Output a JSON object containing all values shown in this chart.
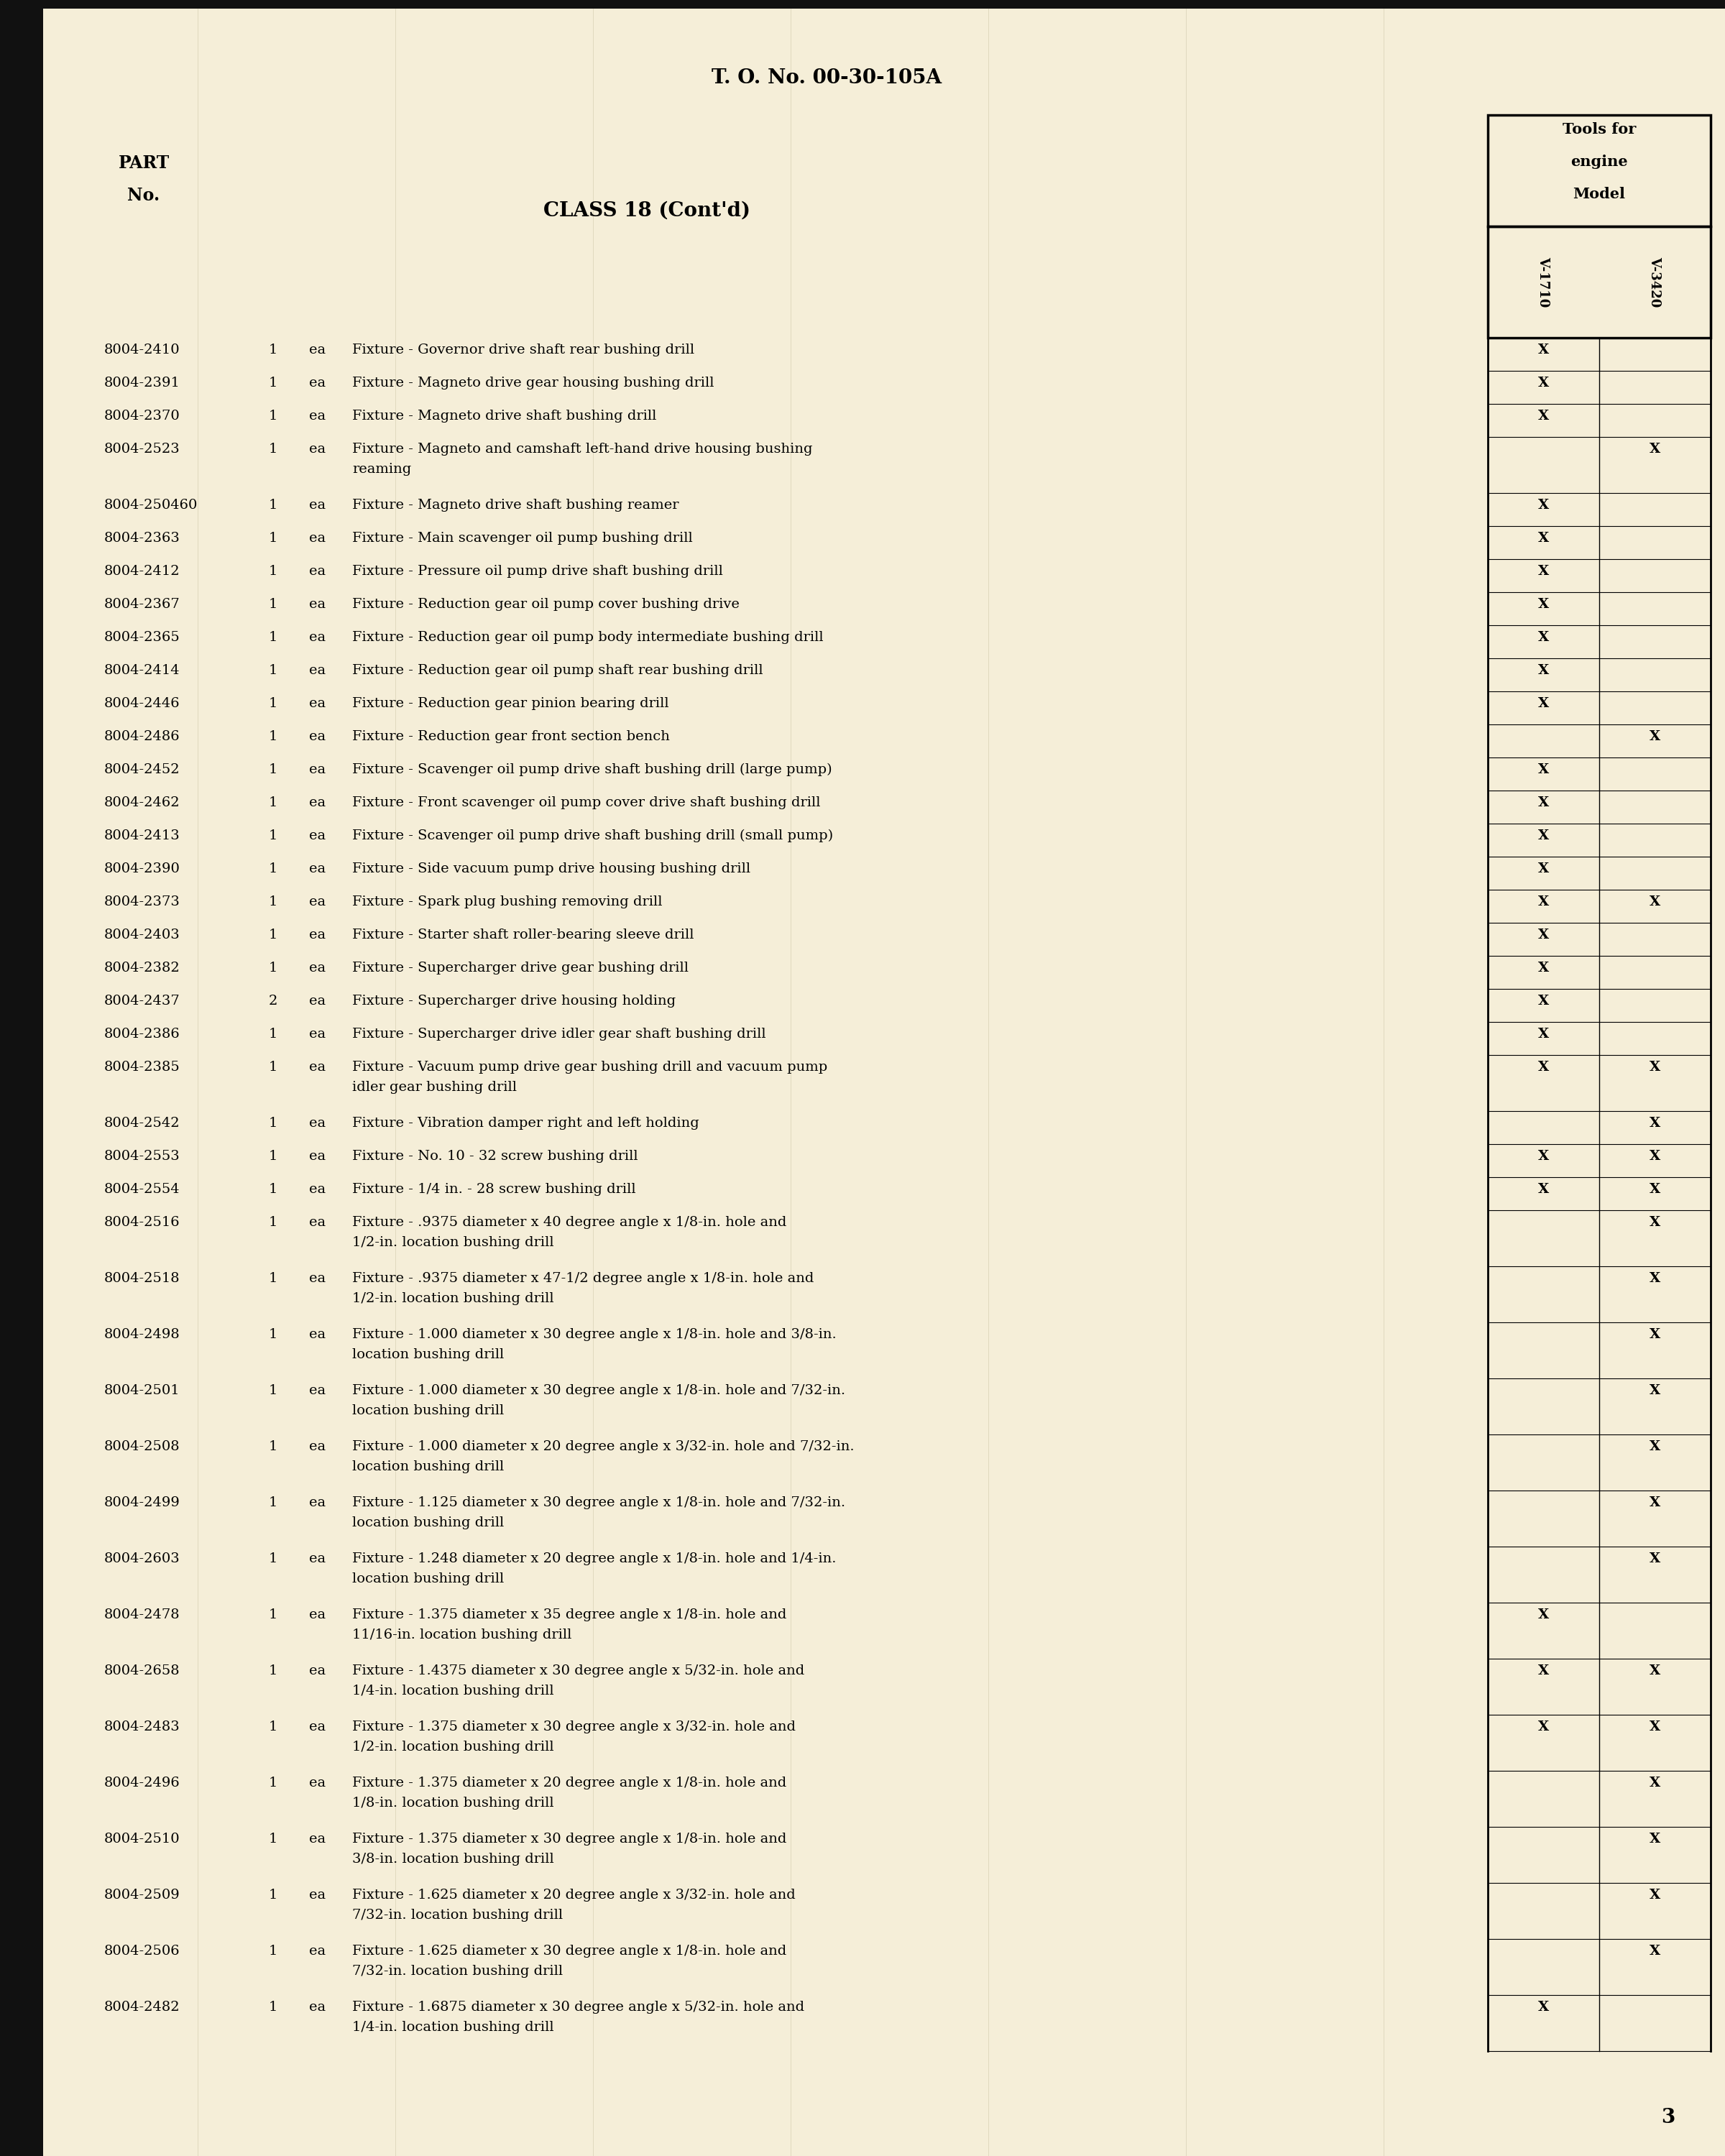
{
  "bg_color": "#f0ead8",
  "page_color": "#f5eed8",
  "header_text": "T. O. No. 00-30-105A",
  "class_text": "CLASS 18 (Cont'd)",
  "part_no_label_line1": "PART",
  "part_no_label_line2": "No.",
  "tools_header_line1": "Tools for",
  "tools_header_line2": "engine",
  "tools_header_line3": "Model",
  "col_v1710": "V-1710",
  "col_v3420": "V-3420",
  "page_number": "3",
  "rows": [
    {
      "part": "8004-2410",
      "qty": "1",
      "unit": "ea",
      "desc": "Fixture - Governor drive shaft rear bushing drill",
      "v1710": true,
      "v3420": false,
      "lines": 1
    },
    {
      "part": "8004-2391",
      "qty": "1",
      "unit": "ea",
      "desc": "Fixture - Magneto drive gear housing bushing drill",
      "v1710": true,
      "v3420": false,
      "lines": 1
    },
    {
      "part": "8004-2370",
      "qty": "1",
      "unit": "ea",
      "desc": "Fixture - Magneto drive shaft bushing drill",
      "v1710": true,
      "v3420": false,
      "lines": 1
    },
    {
      "part": "8004-2523",
      "qty": "1",
      "unit": "ea",
      "desc": "Fixture - Magneto and camshaft left-hand drive housing bushing\nreaming",
      "v1710": false,
      "v3420": true,
      "lines": 2
    },
    {
      "part": "8004-250460",
      "qty": "1",
      "unit": "ea",
      "desc": "Fixture - Magneto drive shaft bushing reamer",
      "v1710": true,
      "v3420": false,
      "lines": 1
    },
    {
      "part": "8004-2363",
      "qty": "1",
      "unit": "ea",
      "desc": "Fixture - Main scavenger oil pump bushing drill",
      "v1710": true,
      "v3420": false,
      "lines": 1
    },
    {
      "part": "8004-2412",
      "qty": "1",
      "unit": "ea",
      "desc": "Fixture - Pressure oil pump drive shaft bushing drill",
      "v1710": true,
      "v3420": false,
      "lines": 1
    },
    {
      "part": "8004-2367",
      "qty": "1",
      "unit": "ea",
      "desc": "Fixture - Reduction gear oil pump cover bushing drive",
      "v1710": true,
      "v3420": false,
      "lines": 1
    },
    {
      "part": "8004-2365",
      "qty": "1",
      "unit": "ea",
      "desc": "Fixture - Reduction gear oil pump body intermediate bushing drill",
      "v1710": true,
      "v3420": false,
      "lines": 1
    },
    {
      "part": "8004-2414",
      "qty": "1",
      "unit": "ea",
      "desc": "Fixture - Reduction gear oil pump shaft rear bushing drill",
      "v1710": true,
      "v3420": false,
      "lines": 1
    },
    {
      "part": "8004-2446",
      "qty": "1",
      "unit": "ea",
      "desc": "Fixture - Reduction gear pinion bearing drill",
      "v1710": true,
      "v3420": false,
      "lines": 1
    },
    {
      "part": "8004-2486",
      "qty": "1",
      "unit": "ea",
      "desc": "Fixture - Reduction gear front section bench",
      "v1710": false,
      "v3420": true,
      "lines": 1
    },
    {
      "part": "8004-2452",
      "qty": "1",
      "unit": "ea",
      "desc": "Fixture - Scavenger oil pump drive shaft bushing drill (large pump)",
      "v1710": true,
      "v3420": false,
      "lines": 1
    },
    {
      "part": "8004-2462",
      "qty": "1",
      "unit": "ea",
      "desc": "Fixture - Front scavenger oil pump cover drive shaft bushing drill",
      "v1710": true,
      "v3420": false,
      "lines": 1
    },
    {
      "part": "8004-2413",
      "qty": "1",
      "unit": "ea",
      "desc": "Fixture - Scavenger oil pump drive shaft bushing drill (small pump)",
      "v1710": true,
      "v3420": false,
      "lines": 1
    },
    {
      "part": "8004-2390",
      "qty": "1",
      "unit": "ea",
      "desc": "Fixture - Side vacuum pump drive housing bushing drill",
      "v1710": true,
      "v3420": false,
      "lines": 1
    },
    {
      "part": "8004-2373",
      "qty": "1",
      "unit": "ea",
      "desc": "Fixture - Spark plug bushing removing drill",
      "v1710": true,
      "v3420": true,
      "lines": 1
    },
    {
      "part": "8004-2403",
      "qty": "1",
      "unit": "ea",
      "desc": "Fixture - Starter shaft roller-bearing sleeve drill",
      "v1710": true,
      "v3420": false,
      "lines": 1
    },
    {
      "part": "8004-2382",
      "qty": "1",
      "unit": "ea",
      "desc": "Fixture - Supercharger drive gear bushing drill",
      "v1710": true,
      "v3420": false,
      "lines": 1
    },
    {
      "part": "8004-2437",
      "qty": "2",
      "unit": "ea",
      "desc": "Fixture - Supercharger drive housing holding",
      "v1710": true,
      "v3420": false,
      "lines": 1
    },
    {
      "part": "8004-2386",
      "qty": "1",
      "unit": "ea",
      "desc": "Fixture - Supercharger drive idler gear shaft bushing drill",
      "v1710": true,
      "v3420": false,
      "lines": 1
    },
    {
      "part": "8004-2385",
      "qty": "1",
      "unit": "ea",
      "desc": "Fixture - Vacuum pump drive gear bushing drill and vacuum pump\nidler gear bushing drill",
      "v1710": true,
      "v3420": true,
      "lines": 2
    },
    {
      "part": "8004-2542",
      "qty": "1",
      "unit": "ea",
      "desc": "Fixture - Vibration damper right and left holding",
      "v1710": false,
      "v3420": true,
      "lines": 1
    },
    {
      "part": "8004-2553",
      "qty": "1",
      "unit": "ea",
      "desc": "Fixture - No. 10 - 32 screw bushing drill",
      "v1710": true,
      "v3420": true,
      "lines": 1
    },
    {
      "part": "8004-2554",
      "qty": "1",
      "unit": "ea",
      "desc": "Fixture - 1/4 in. - 28 screw bushing drill",
      "v1710": true,
      "v3420": true,
      "lines": 1
    },
    {
      "part": "8004-2516",
      "qty": "1",
      "unit": "ea",
      "desc": "Fixture - .9375 diameter x 40 degree angle x 1/8-in. hole and\n1/2-in. location bushing drill",
      "v1710": false,
      "v3420": true,
      "lines": 2
    },
    {
      "part": "8004-2518",
      "qty": "1",
      "unit": "ea",
      "desc": "Fixture - .9375 diameter x 47-1/2 degree angle x 1/8-in. hole and\n1/2-in. location bushing drill",
      "v1710": false,
      "v3420": true,
      "lines": 2
    },
    {
      "part": "8004-2498",
      "qty": "1",
      "unit": "ea",
      "desc": "Fixture - 1.000 diameter x 30 degree angle x 1/8-in. hole and 3/8-in.\nlocation bushing drill",
      "v1710": false,
      "v3420": true,
      "lines": 2
    },
    {
      "part": "8004-2501",
      "qty": "1",
      "unit": "ea",
      "desc": "Fixture - 1.000 diameter x 30 degree angle x 1/8-in. hole and 7/32-in.\nlocation bushing drill",
      "v1710": false,
      "v3420": true,
      "lines": 2
    },
    {
      "part": "8004-2508",
      "qty": "1",
      "unit": "ea",
      "desc": "Fixture - 1.000 diameter x 20 degree angle x 3/32-in. hole and 7/32-in.\nlocation bushing drill",
      "v1710": false,
      "v3420": true,
      "lines": 2
    },
    {
      "part": "8004-2499",
      "qty": "1",
      "unit": "ea",
      "desc": "Fixture - 1.125 diameter x 30 degree angle x 1/8-in. hole and 7/32-in.\nlocation bushing drill",
      "v1710": false,
      "v3420": true,
      "lines": 2
    },
    {
      "part": "8004-2603",
      "qty": "1",
      "unit": "ea",
      "desc": "Fixture - 1.248 diameter x 20 degree angle x 1/8-in. hole and 1/4-in.\nlocation bushing drill",
      "v1710": false,
      "v3420": true,
      "lines": 2
    },
    {
      "part": "8004-2478",
      "qty": "1",
      "unit": "ea",
      "desc": "Fixture - 1.375 diameter x 35 degree angle x 1/8-in. hole and\n11/16-in. location bushing drill",
      "v1710": true,
      "v3420": false,
      "lines": 2
    },
    {
      "part": "8004-2658",
      "qty": "1",
      "unit": "ea",
      "desc": "Fixture - 1.4375 diameter x 30 degree angle x 5/32-in. hole and\n1/4-in. location bushing drill",
      "v1710": true,
      "v3420": true,
      "lines": 2
    },
    {
      "part": "8004-2483",
      "qty": "1",
      "unit": "ea",
      "desc": "Fixture - 1.375 diameter x 30 degree angle x 3/32-in. hole and\n1/2-in. location bushing drill",
      "v1710": true,
      "v3420": true,
      "lines": 2
    },
    {
      "part": "8004-2496",
      "qty": "1",
      "unit": "ea",
      "desc": "Fixture - 1.375 diameter x 20 degree angle x 1/8-in. hole and\n1/8-in. location bushing drill",
      "v1710": false,
      "v3420": true,
      "lines": 2
    },
    {
      "part": "8004-2510",
      "qty": "1",
      "unit": "ea",
      "desc": "Fixture - 1.375 diameter x 30 degree angle x 1/8-in. hole and\n3/8-in. location bushing drill",
      "v1710": false,
      "v3420": true,
      "lines": 2
    },
    {
      "part": "8004-2509",
      "qty": "1",
      "unit": "ea",
      "desc": "Fixture - 1.625 diameter x 20 degree angle x 3/32-in. hole and\n7/32-in. location bushing drill",
      "v1710": false,
      "v3420": true,
      "lines": 2
    },
    {
      "part": "8004-2506",
      "qty": "1",
      "unit": "ea",
      "desc": "Fixture - 1.625 diameter x 30 degree angle x 1/8-in. hole and\n7/32-in. location bushing drill",
      "v1710": false,
      "v3420": true,
      "lines": 2
    },
    {
      "part": "8004-2482",
      "qty": "1",
      "unit": "ea",
      "desc": "Fixture - 1.6875 diameter x 30 degree angle x 5/32-in. hole and\n1/4-in. location bushing drill",
      "v1710": true,
      "v3420": false,
      "lines": 2
    }
  ]
}
